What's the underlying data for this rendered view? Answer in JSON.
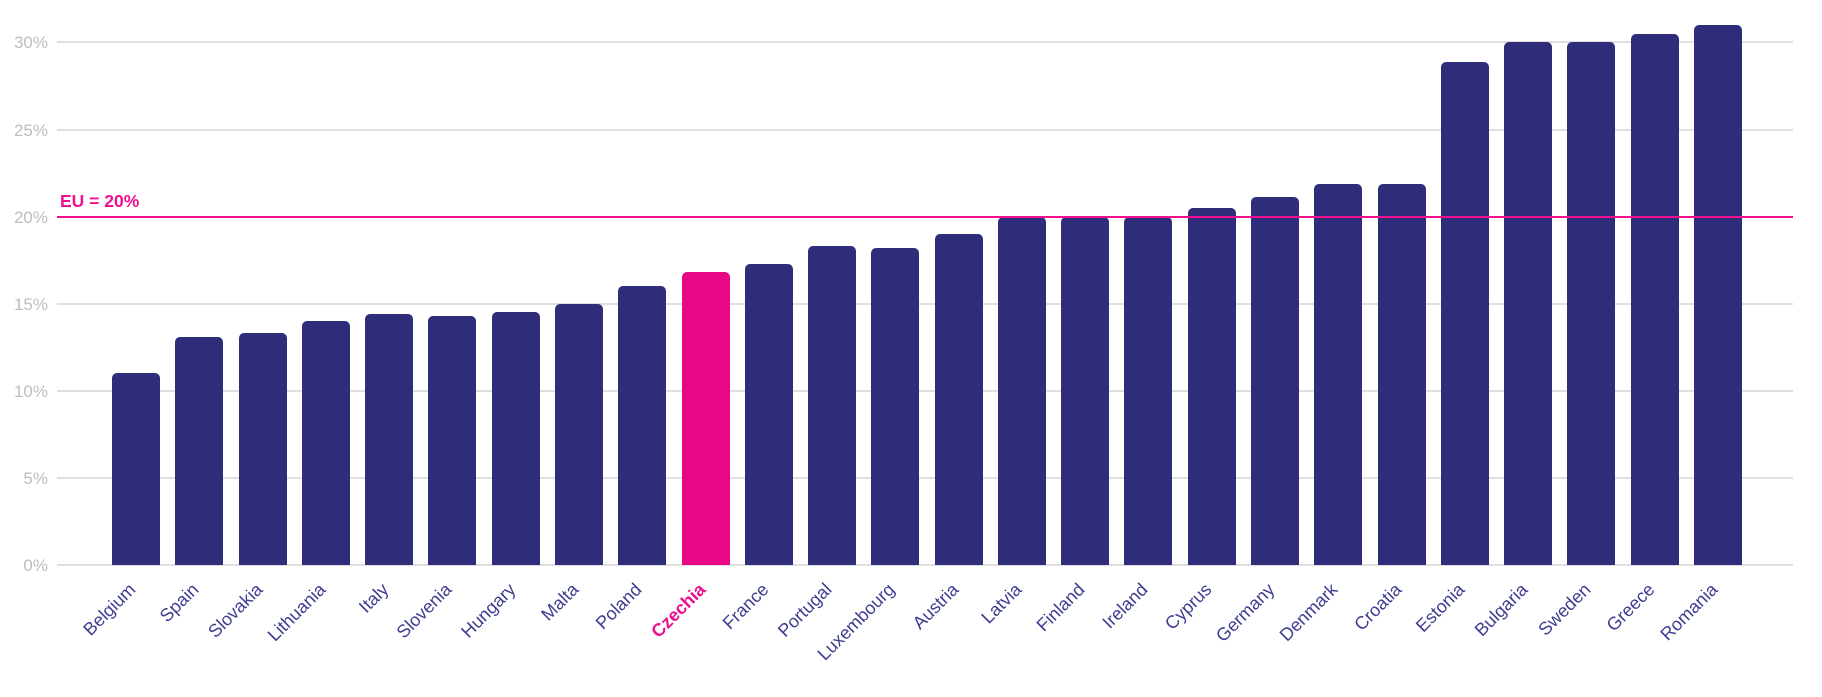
{
  "chart_data": {
    "type": "bar",
    "categories": [
      "Belgium",
      "Spain",
      "Slovakia",
      "Lithuania",
      "Italy",
      "Slovenia",
      "Hungary",
      "Malta",
      "Poland",
      "Czechia",
      "France",
      "Portugal",
      "Luxembourg",
      "Austria",
      "Latvia",
      "Finland",
      "Ireland",
      "Cyprus",
      "Germany",
      "Denmark",
      "Croatia",
      "Estonia",
      "Bulgaria",
      "Sweden",
      "Greece",
      "Romania"
    ],
    "values": [
      11.0,
      13.1,
      13.3,
      14.0,
      14.4,
      14.3,
      14.5,
      15.0,
      16.0,
      16.8,
      17.3,
      18.3,
      18.2,
      19.0,
      20.0,
      20.0,
      20.0,
      20.5,
      21.1,
      21.9,
      21.9,
      28.9,
      30.0,
      30.0,
      30.5,
      31.0
    ],
    "highlight_category": "Czechia",
    "title": "",
    "xlabel": "",
    "ylabel": "",
    "ylim": [
      0,
      31
    ],
    "yticks": [
      0,
      5,
      10,
      15,
      20,
      25,
      30
    ],
    "ytick_labels": [
      "0%",
      "5%",
      "10%",
      "15%",
      "20%",
      "25%",
      "30%"
    ],
    "grid": true,
    "legend": "none",
    "reference_line": {
      "value": 20,
      "label": "EU = 20%"
    },
    "colors": {
      "bar": "#2f2c7a",
      "highlight_bar": "#e60884",
      "reference_line": "#f0108f",
      "grid": "#dfdfdf",
      "ytick_label": "#bdbdbd",
      "category_label": "#3d3d92",
      "highlight_category_label": "#ed0d8e",
      "background": "#ffffff"
    }
  }
}
